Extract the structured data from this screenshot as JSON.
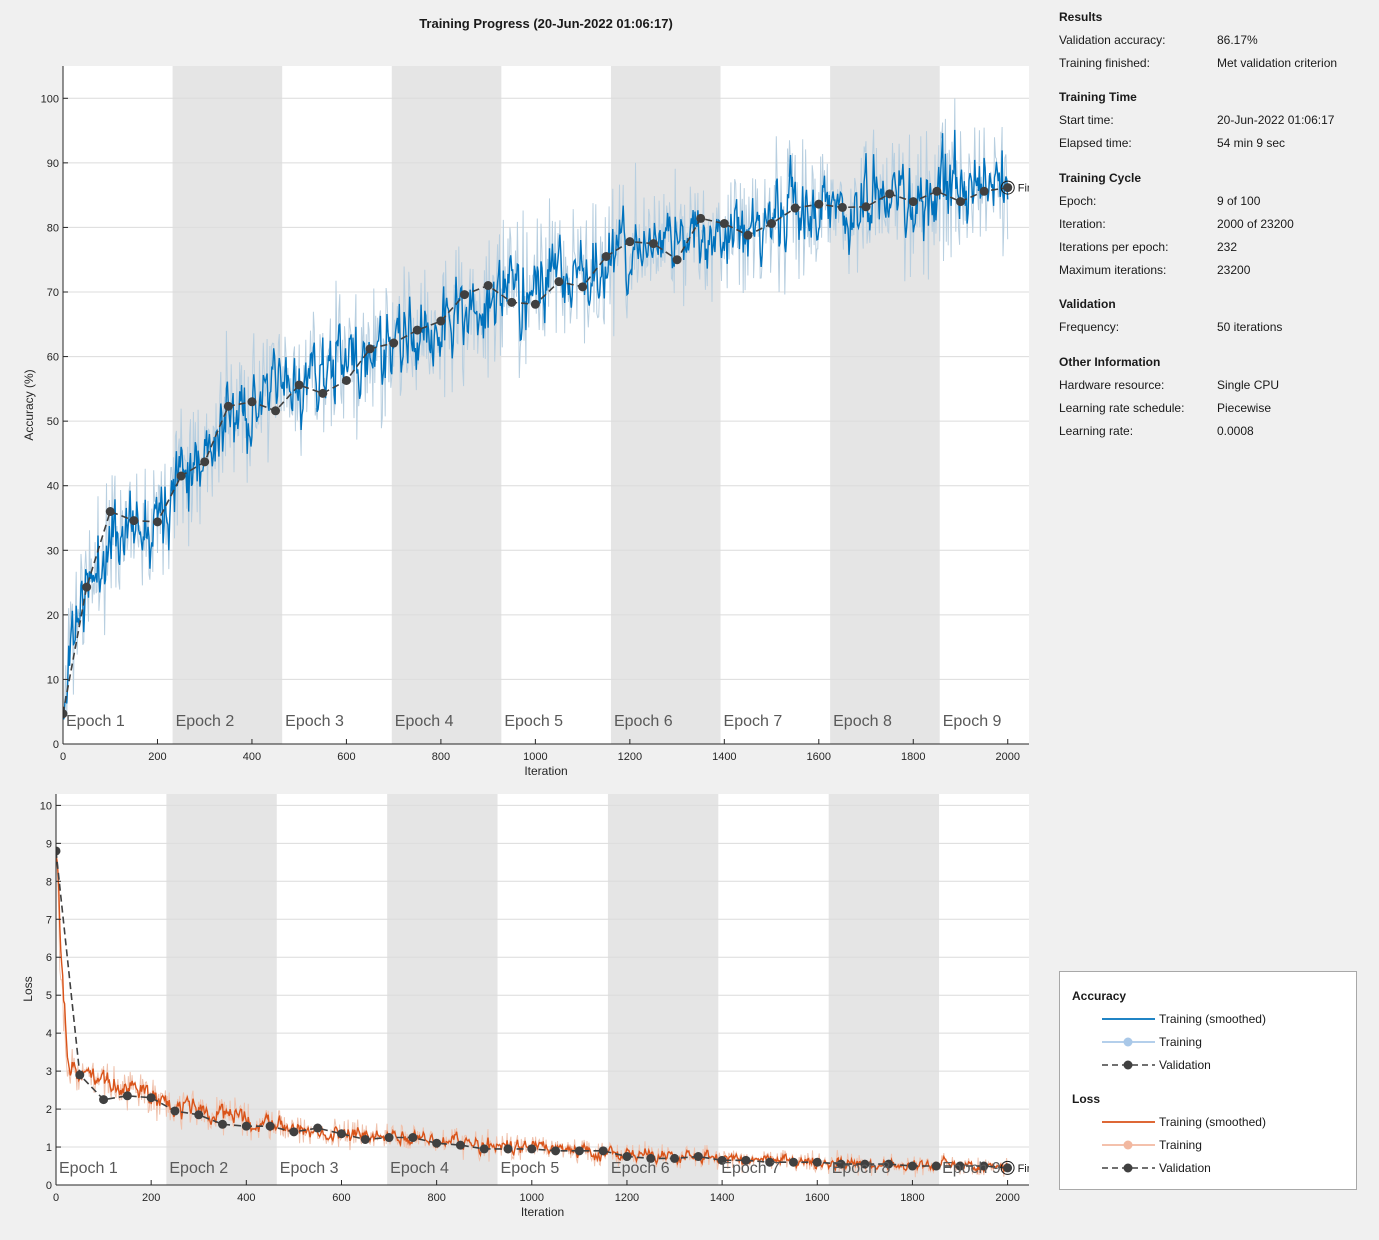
{
  "title": "Training Progress (20-Jun-2022 01:06:17)",
  "info": {
    "results": {
      "heading": "Results",
      "rows": [
        {
          "key": "Validation accuracy:",
          "value": "86.17%"
        },
        {
          "key": "Training finished:",
          "value": "Met validation criterion"
        }
      ]
    },
    "training_time": {
      "heading": "Training Time",
      "rows": [
        {
          "key": "Start time:",
          "value": "20-Jun-2022 01:06:17"
        },
        {
          "key": "Elapsed time:",
          "value": "54 min 9 sec"
        }
      ]
    },
    "training_cycle": {
      "heading": "Training Cycle",
      "rows": [
        {
          "key": "Epoch:",
          "value": "9 of 100"
        },
        {
          "key": "Iteration:",
          "value": "2000 of 23200"
        },
        {
          "key": "Iterations per epoch:",
          "value": "232"
        },
        {
          "key": "Maximum iterations:",
          "value": "23200"
        }
      ]
    },
    "validation": {
      "heading": "Validation",
      "rows": [
        {
          "key": "Frequency:",
          "value": "50 iterations"
        }
      ]
    },
    "other": {
      "heading": "Other Information",
      "rows": [
        {
          "key": "Hardware resource:",
          "value": "Single CPU"
        },
        {
          "key": "Learning rate schedule:",
          "value": "Piecewise"
        },
        {
          "key": "Learning rate:",
          "value": "0.0008"
        }
      ]
    }
  },
  "legend": {
    "accuracy_heading": "Accuracy",
    "loss_heading": "Loss",
    "accuracy_items": [
      "Training (smoothed)",
      "Training",
      "Validation"
    ],
    "loss_items": [
      "Training (smoothed)",
      "Training",
      "Validation"
    ]
  },
  "colors": {
    "accuracy_smoothed": "#0072bd",
    "accuracy_raw": "#b8cfe0",
    "loss_smoothed": "#d95319",
    "loss_raw": "#f0c2ad",
    "validation": "#404040",
    "epoch_shade": "#e5e5e5",
    "grid": "#dcdcdc"
  },
  "finished_marker_label": "Final",
  "chart_data": [
    {
      "type": "line",
      "name": "accuracy",
      "xlabel": "Iteration",
      "ylabel": "Accuracy (%)",
      "xlim": [
        0,
        2045
      ],
      "ylim": [
        0,
        105
      ],
      "xticks": [
        0,
        200,
        400,
        600,
        800,
        1000,
        1200,
        1400,
        1600,
        1800,
        2000
      ],
      "yticks": [
        0,
        10,
        20,
        30,
        40,
        50,
        60,
        70,
        80,
        90,
        100
      ],
      "grid": true,
      "epoch_bands": [
        {
          "label": "Epoch 1",
          "start": 0,
          "end": 232,
          "shaded": false
        },
        {
          "label": "Epoch 2",
          "start": 232,
          "end": 464,
          "shaded": true
        },
        {
          "label": "Epoch 3",
          "start": 464,
          "end": 696,
          "shaded": false
        },
        {
          "label": "Epoch 4",
          "start": 696,
          "end": 928,
          "shaded": true
        },
        {
          "label": "Epoch 5",
          "start": 928,
          "end": 1160,
          "shaded": false
        },
        {
          "label": "Epoch 6",
          "start": 1160,
          "end": 1392,
          "shaded": true
        },
        {
          "label": "Epoch 7",
          "start": 1392,
          "end": 1624,
          "shaded": false
        },
        {
          "label": "Epoch 8",
          "start": 1624,
          "end": 1856,
          "shaded": true
        },
        {
          "label": "Epoch 9",
          "start": 1856,
          "end": 2045,
          "shaded": false
        }
      ],
      "training_smoothed_trend": {
        "x": [
          0,
          10,
          25,
          50,
          75,
          100,
          130,
          160,
          200,
          250,
          300,
          350,
          400,
          450,
          500,
          550,
          600,
          650,
          700,
          750,
          800,
          850,
          900,
          950,
          1000,
          1050,
          1100,
          1150,
          1200,
          1250,
          1300,
          1350,
          1400,
          1450,
          1500,
          1550,
          1600,
          1650,
          1700,
          1750,
          1800,
          1850,
          1900,
          1950,
          2000
        ],
        "y": [
          2,
          14,
          20,
          24,
          28,
          32,
          34,
          35,
          37,
          43,
          47,
          50,
          52,
          54,
          56,
          57,
          59,
          60,
          61,
          63,
          65,
          67,
          68,
          70,
          71,
          72,
          73,
          74,
          76,
          77,
          78,
          79,
          80,
          80.5,
          81,
          82,
          82.5,
          83,
          83.5,
          84,
          84.5,
          85,
          85.5,
          86,
          86.5
        ]
      },
      "validation": {
        "x": [
          0,
          50,
          100,
          150,
          200,
          250,
          300,
          350,
          400,
          450,
          500,
          550,
          600,
          650,
          700,
          750,
          800,
          850,
          900,
          950,
          1000,
          1050,
          1100,
          1150,
          1200,
          1250,
          1300,
          1350,
          1400,
          1450,
          1500,
          1550,
          1600,
          1650,
          1700,
          1750,
          1800,
          1850,
          1900,
          1950,
          2000
        ],
        "y": [
          4.7,
          24.3,
          36.0,
          34.6,
          34.4,
          41.5,
          43.7,
          52.3,
          53.0,
          51.6,
          55.6,
          54.3,
          56.3,
          61.2,
          62.1,
          64.1,
          65.5,
          69.6,
          71.0,
          68.4,
          68.1,
          71.6,
          70.8,
          75.5,
          77.8,
          77.5,
          75.0,
          81.4,
          80.6,
          78.8,
          80.6,
          83.0,
          83.6,
          83.1,
          83.2,
          85.2,
          84.0,
          85.6,
          84.0,
          85.6,
          86.17
        ]
      }
    },
    {
      "type": "line",
      "name": "loss",
      "xlabel": "Iteration",
      "ylabel": "Loss",
      "xlim": [
        0,
        2045
      ],
      "ylim": [
        0,
        10.3
      ],
      "xticks": [
        0,
        200,
        400,
        600,
        800,
        1000,
        1200,
        1400,
        1600,
        1800,
        2000
      ],
      "yticks": [
        0,
        1,
        2,
        3,
        4,
        5,
        6,
        7,
        8,
        9,
        10
      ],
      "grid": true,
      "epoch_bands": [
        {
          "label": "Epoch 1",
          "start": 0,
          "end": 232,
          "shaded": false
        },
        {
          "label": "Epoch 2",
          "start": 232,
          "end": 464,
          "shaded": true
        },
        {
          "label": "Epoch 3",
          "start": 464,
          "end": 696,
          "shaded": false
        },
        {
          "label": "Epoch 4",
          "start": 696,
          "end": 928,
          "shaded": true
        },
        {
          "label": "Epoch 5",
          "start": 928,
          "end": 1160,
          "shaded": false
        },
        {
          "label": "Epoch 6",
          "start": 1160,
          "end": 1392,
          "shaded": true
        },
        {
          "label": "Epoch 7",
          "start": 1392,
          "end": 1624,
          "shaded": false
        },
        {
          "label": "Epoch 8",
          "start": 1624,
          "end": 1856,
          "shaded": true
        },
        {
          "label": "Epoch 9",
          "start": 1856,
          "end": 2045,
          "shaded": false
        }
      ],
      "training_smoothed_trend": {
        "x": [
          0,
          5,
          12,
          20,
          30,
          50,
          75,
          100,
          150,
          200,
          250,
          300,
          350,
          400,
          450,
          500,
          550,
          600,
          650,
          700,
          750,
          800,
          900,
          1000,
          1100,
          1200,
          1300,
          1400,
          1500,
          1600,
          1700,
          1800,
          1900,
          2000
        ],
        "y": [
          10.0,
          8.0,
          5.0,
          3.6,
          3.1,
          3.0,
          2.9,
          2.7,
          2.5,
          2.3,
          2.1,
          2.0,
          1.85,
          1.7,
          1.6,
          1.5,
          1.4,
          1.35,
          1.3,
          1.25,
          1.2,
          1.15,
          1.05,
          0.97,
          0.9,
          0.83,
          0.76,
          0.7,
          0.65,
          0.6,
          0.56,
          0.52,
          0.5,
          0.48
        ]
      },
      "validation": {
        "x": [
          0,
          50,
          100,
          150,
          200,
          250,
          300,
          350,
          400,
          450,
          500,
          550,
          600,
          650,
          700,
          750,
          800,
          850,
          900,
          950,
          1000,
          1050,
          1100,
          1150,
          1200,
          1250,
          1300,
          1350,
          1400,
          1450,
          1500,
          1550,
          1600,
          1650,
          1700,
          1750,
          1800,
          1850,
          1900,
          1950,
          2000
        ],
        "y": [
          8.8,
          2.9,
          2.25,
          2.35,
          2.3,
          1.95,
          1.85,
          1.6,
          1.55,
          1.55,
          1.4,
          1.5,
          1.35,
          1.2,
          1.25,
          1.25,
          1.1,
          1.05,
          0.95,
          0.95,
          0.95,
          0.9,
          0.9,
          0.9,
          0.75,
          0.7,
          0.7,
          0.75,
          0.65,
          0.65,
          0.6,
          0.6,
          0.6,
          0.55,
          0.55,
          0.55,
          0.5,
          0.5,
          0.5,
          0.5,
          0.45
        ]
      }
    }
  ]
}
